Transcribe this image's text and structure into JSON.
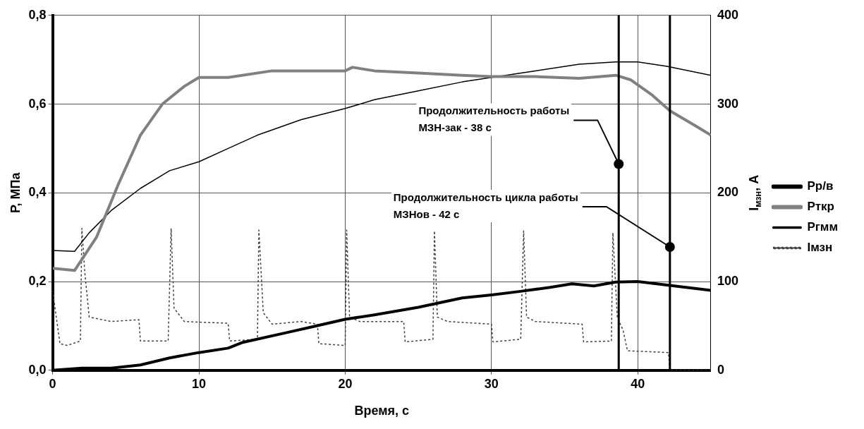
{
  "chart_data": {
    "type": "line",
    "xlabel": "Время, с",
    "ylabel": "P, МПа",
    "y2label": "I$_{мзн}$, А",
    "xlim": [
      0,
      45
    ],
    "xticks": [
      0,
      10,
      20,
      30,
      40
    ],
    "ylim": [
      0,
      0.8
    ],
    "yticks": [
      {
        "value": 0,
        "label": "0,0"
      },
      {
        "value": 0.2,
        "label": "0,2"
      },
      {
        "value": 0.4,
        "label": "0,4"
      },
      {
        "value": 0.6,
        "label": "0,6"
      },
      {
        "value": 0.8,
        "label": "0,8"
      }
    ],
    "y2lim": [
      0,
      400
    ],
    "y2ticks": [
      0,
      100,
      200,
      300,
      400
    ],
    "grid": true,
    "legend": "right",
    "marker": "none",
    "series": [
      {
        "name": "Рр/в",
        "color": "#000000",
        "x": [
          0,
          2,
          4,
          6,
          8,
          10,
          12,
          13,
          16,
          18,
          20,
          22,
          25,
          28,
          30,
          32,
          34,
          35.5,
          37,
          38.5,
          40,
          42,
          45
        ],
        "values": [
          0,
          0.005,
          0.005,
          0.012,
          0.028,
          0.04,
          0.05,
          0.063,
          0.085,
          0.1,
          0.115,
          0.125,
          0.142,
          0.163,
          0.17,
          0.178,
          0.187,
          0.195,
          0.19,
          0.199,
          0.2,
          0.192,
          0.18
        ]
      },
      {
        "name": "Рткр",
        "color": "#808080",
        "x": [
          0,
          1.5,
          3,
          4.5,
          6,
          7.5,
          9,
          10,
          12,
          15,
          18,
          20,
          20.5,
          22,
          25,
          28,
          30,
          33,
          36,
          38.5,
          39.5,
          41,
          42.2,
          44,
          45
        ],
        "values": [
          0.23,
          0.225,
          0.3,
          0.42,
          0.53,
          0.6,
          0.64,
          0.66,
          0.66,
          0.675,
          0.675,
          0.675,
          0.683,
          0.675,
          0.67,
          0.665,
          0.662,
          0.662,
          0.658,
          0.665,
          0.655,
          0.62,
          0.585,
          0.55,
          0.53
        ]
      },
      {
        "name": "Ргмм",
        "color": "#000000",
        "x": [
          0,
          1.5,
          2.5,
          4,
          6,
          8,
          10,
          12,
          14,
          17,
          20,
          22,
          25,
          28,
          30,
          33,
          36,
          38.5,
          40,
          42,
          45
        ],
        "values": [
          0.27,
          0.268,
          0.31,
          0.36,
          0.41,
          0.45,
          0.47,
          0.5,
          0.53,
          0.565,
          0.59,
          0.61,
          0.63,
          0.65,
          0.66,
          0.675,
          0.69,
          0.695,
          0.695,
          0.685,
          0.665
        ]
      },
      {
        "name": "Імзн",
        "color": "#404040",
        "axis": "y2",
        "line_style": "dotted",
        "x": [
          0,
          0.5,
          1.0,
          1.9,
          2.0,
          2.2,
          2.5,
          4,
          5.9,
          6.0,
          7.9,
          8.1,
          8.3,
          9,
          12,
          12.1,
          14,
          14.1,
          14.4,
          15,
          17,
          18.1,
          18.2,
          20,
          20.1,
          20.3,
          21,
          24,
          24.1,
          26,
          26.1,
          26.3,
          27,
          30,
          30.1,
          32,
          32.2,
          32.4,
          33,
          36.2,
          36.3,
          38.2,
          38.3,
          38.6,
          39,
          39.3,
          42.1,
          42.2,
          45
        ],
        "values": [
          90,
          30,
          28,
          33,
          160,
          110,
          60,
          55,
          57,
          33,
          33,
          160,
          70,
          55,
          53,
          33,
          35,
          158,
          65,
          52,
          55,
          52,
          30,
          28,
          158,
          60,
          55,
          55,
          32,
          35,
          157,
          60,
          55,
          52,
          32,
          35,
          157,
          60,
          55,
          52,
          32,
          33,
          155,
          60,
          45,
          22,
          20,
          0,
          0
        ]
      }
    ],
    "ref_lines": [
      {
        "axis": "x",
        "value": 38.7,
        "color": "#000000"
      },
      {
        "axis": "x",
        "value": 42.2,
        "color": "#000000"
      }
    ],
    "annotations": [
      {
        "text": "Продолжительность работы\nМЗН-зак - 38 с",
        "x": 38.7,
        "y": 0.465
      },
      {
        "text": "Продолжительность цикла работы\nМЗНов - 42 с",
        "x": 42.2,
        "y": 0.278
      }
    ]
  }
}
